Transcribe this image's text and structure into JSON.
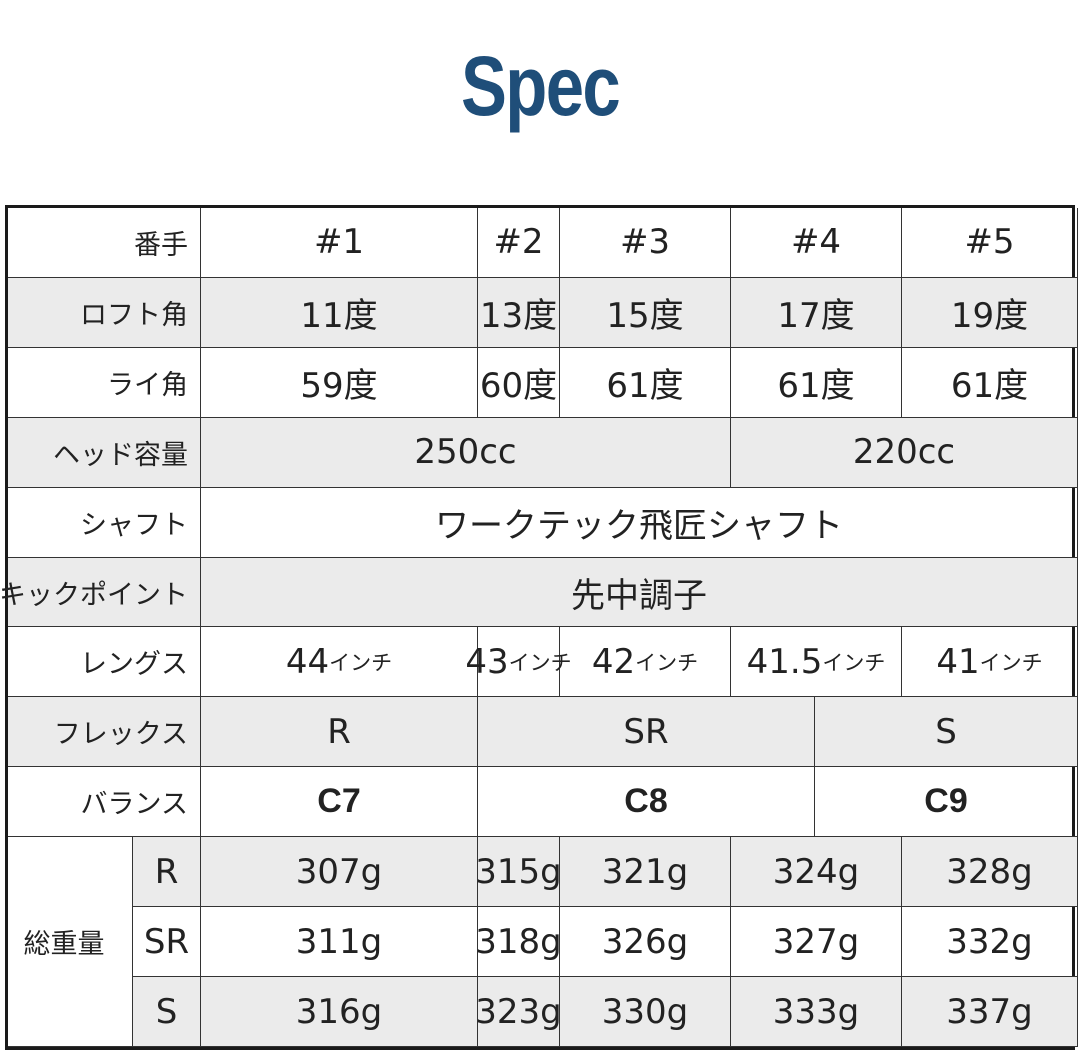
{
  "title": "Spec",
  "rows": [
    {
      "label": "番手",
      "values": [
        "#1",
        "#2",
        "#3",
        "#4",
        "#5"
      ]
    },
    {
      "label": "ロフト角",
      "values": [
        "11度",
        "13度",
        "15度",
        "17度",
        "19度"
      ]
    },
    {
      "label": "ライ角",
      "values": [
        "59度",
        "60度",
        "61度",
        "61度",
        "61度"
      ]
    },
    {
      "label": "ヘッド容量",
      "values": [
        "250cc",
        "220cc"
      ]
    },
    {
      "label": "シャフト",
      "values": [
        "ワークテック飛匠シャフト"
      ]
    },
    {
      "label": "キックポイント",
      "values": [
        "先中調子"
      ]
    },
    {
      "label": "レングス",
      "values": [
        "44",
        "43",
        "42",
        "41.5",
        "41"
      ],
      "unit": "インチ"
    },
    {
      "label": "フレックス",
      "values": [
        "R",
        "SR",
        "S"
      ]
    },
    {
      "label": "バランス",
      "values": [
        "C7",
        "C8",
        "C9"
      ]
    }
  ],
  "weight": {
    "label": "総重量",
    "rows": [
      {
        "flex": "R",
        "values": [
          "307g",
          "315g",
          "321g",
          "324g",
          "328g"
        ]
      },
      {
        "flex": "SR",
        "values": [
          "311g",
          "318g",
          "326g",
          "327g",
          "332g"
        ]
      },
      {
        "flex": "S",
        "values": [
          "316g",
          "323g",
          "330g",
          "333g",
          "337g"
        ]
      }
    ]
  }
}
